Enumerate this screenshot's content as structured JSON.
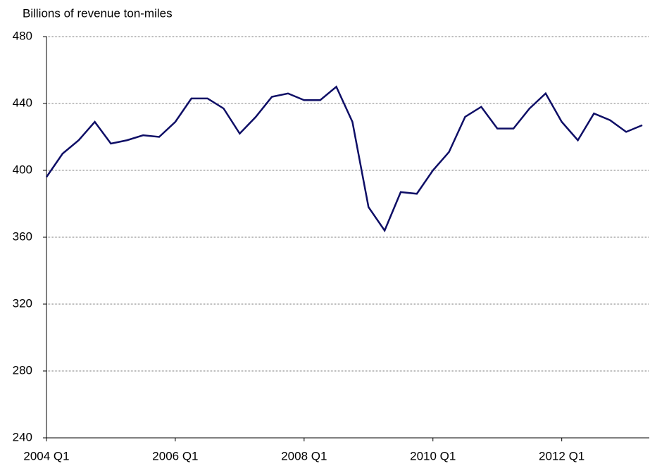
{
  "chart_data": {
    "type": "line",
    "y_axis_label": "Billions of revenue ton-miles",
    "categories": [
      "2004 Q1",
      null,
      null,
      null,
      null,
      null,
      null,
      null,
      "2006 Q1",
      null,
      null,
      null,
      null,
      null,
      null,
      null,
      "2008 Q1",
      null,
      null,
      null,
      null,
      null,
      null,
      null,
      "2010 Q1",
      null,
      null,
      null,
      null,
      null,
      null,
      null,
      "2012 Q1",
      null,
      null,
      null,
      null,
      null
    ],
    "series": [
      {
        "name": "Revenue ton-miles",
        "color": "#0e0e66",
        "values": [
          396,
          410,
          418,
          429,
          416,
          418,
          421,
          420,
          429,
          443,
          443,
          437,
          422,
          432,
          444,
          446,
          442,
          442,
          450,
          429,
          378,
          364,
          387,
          386,
          400,
          411,
          432,
          438,
          425,
          425,
          437,
          446,
          429,
          418,
          434,
          430,
          423,
          427
        ]
      }
    ],
    "ylim": [
      240,
      480
    ],
    "yticks": [
      240,
      280,
      320,
      360,
      400,
      440,
      480
    ],
    "grid": true
  }
}
